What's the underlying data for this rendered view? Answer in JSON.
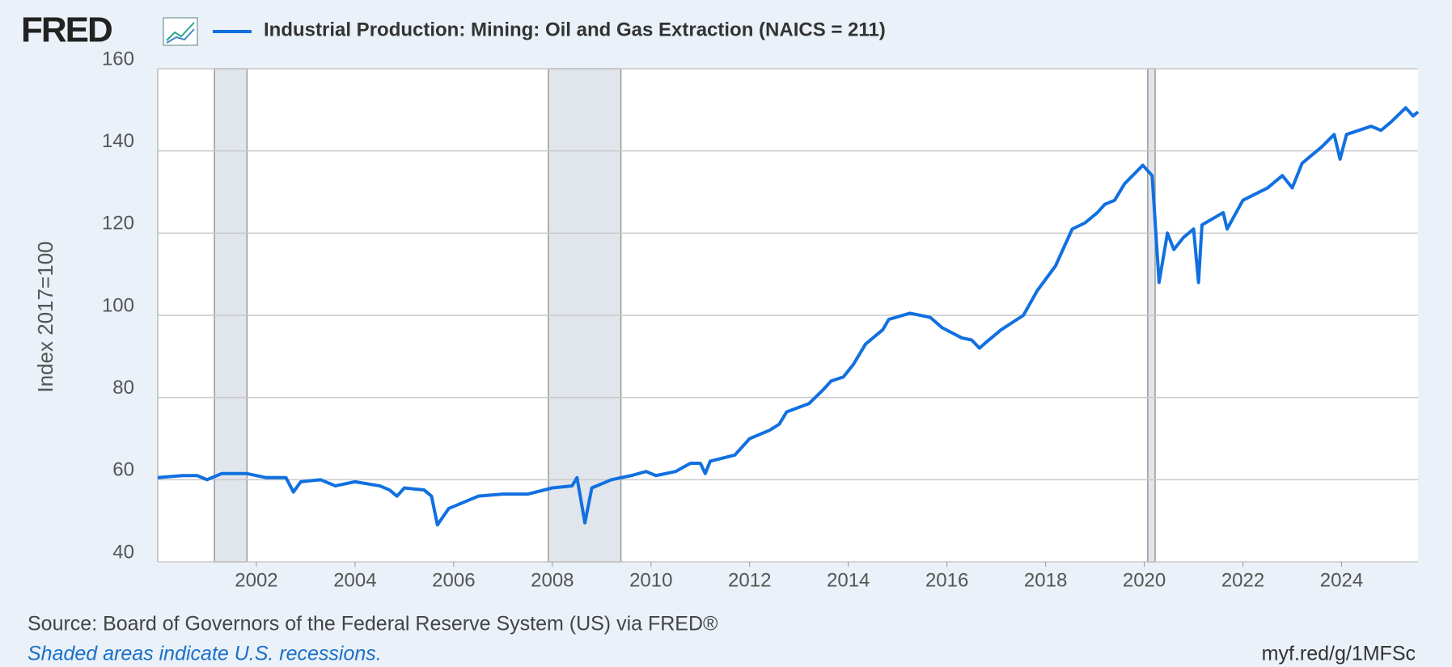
{
  "chart_data": {
    "type": "line",
    "logo": "FRED",
    "y_label": "Index 2017=100",
    "source": "Source: Board of Governors of the Federal Reserve System (US) via FRED®",
    "note": "Shaded areas indicate U.S. recessions.",
    "url": "myf.red/g/1MFSc",
    "xlim": [
      2000,
      2025.55
    ],
    "xticks": [
      2002,
      2004,
      2006,
      2008,
      2010,
      2012,
      2014,
      2016,
      2018,
      2020,
      2022,
      2024
    ],
    "ylim": [
      40,
      160
    ],
    "yticks": [
      40,
      60,
      80,
      100,
      120,
      140,
      160
    ],
    "grid": true,
    "recessions": [
      [
        2001.15,
        2001.81
      ],
      [
        2007.92,
        2009.39
      ],
      [
        2020.07,
        2020.22
      ]
    ],
    "x": [
      2000.0,
      2000.5,
      2000.8,
      2001.0,
      2001.3,
      2001.8,
      2002.2,
      2002.6,
      2002.75,
      2002.9,
      2003.3,
      2003.6,
      2004.0,
      2004.5,
      2004.7,
      2004.85,
      2005.0,
      2005.4,
      2005.55,
      2005.67,
      2005.9,
      2006.2,
      2006.5,
      2007.0,
      2007.5,
      2008.0,
      2008.4,
      2008.5,
      2008.66,
      2008.8,
      2009.2,
      2009.6,
      2009.9,
      2010.1,
      2010.5,
      2010.8,
      2011.0,
      2011.1,
      2011.2,
      2011.7,
      2012.0,
      2012.4,
      2012.6,
      2012.75,
      2013.2,
      2013.5,
      2013.65,
      2013.9,
      2014.1,
      2014.35,
      2014.7,
      2014.82,
      2015.25,
      2015.66,
      2015.9,
      2016.3,
      2016.5,
      2016.66,
      2016.8,
      2017.1,
      2017.55,
      2017.83,
      2018.2,
      2018.54,
      2018.8,
      2019.05,
      2019.2,
      2019.4,
      2019.6,
      2019.97,
      2020.16,
      2020.3,
      2020.47,
      2020.6,
      2020.8,
      2021.0,
      2021.1,
      2021.17,
      2021.6,
      2021.68,
      2022.0,
      2022.5,
      2022.8,
      2023.0,
      2023.2,
      2023.6,
      2023.85,
      2023.97,
      2024.1,
      2024.6,
      2024.8,
      2025.0,
      2025.3,
      2025.45,
      2025.55
    ],
    "series": [
      {
        "name": "Industrial Production: Mining: Oil and Gas Extraction (NAICS = 211)",
        "color": "#1170e0",
        "values": [
          60.5,
          61,
          61,
          60,
          61.5,
          61.5,
          60.5,
          60.5,
          57,
          59.5,
          60,
          58.5,
          59.5,
          58.5,
          57.5,
          56,
          58,
          57.5,
          56,
          49,
          53,
          54.5,
          56,
          56.5,
          56.5,
          58,
          58.5,
          60.5,
          49.5,
          58,
          60,
          61,
          62,
          61,
          62,
          64,
          64,
          61.5,
          64.5,
          66,
          70,
          72,
          73.5,
          76.5,
          78.5,
          82,
          84,
          85,
          88,
          93,
          96.5,
          99,
          100.5,
          99.5,
          97,
          94.5,
          94,
          92,
          93.5,
          96.5,
          100,
          106,
          112,
          121,
          122.5,
          125,
          127,
          128,
          132,
          136.5,
          134,
          108,
          120,
          116,
          119,
          121,
          108,
          122,
          125,
          121,
          128,
          131,
          134,
          131,
          137,
          141,
          144,
          138,
          144,
          146,
          145,
          147,
          150.5,
          148.5,
          149.5
        ]
      }
    ]
  }
}
